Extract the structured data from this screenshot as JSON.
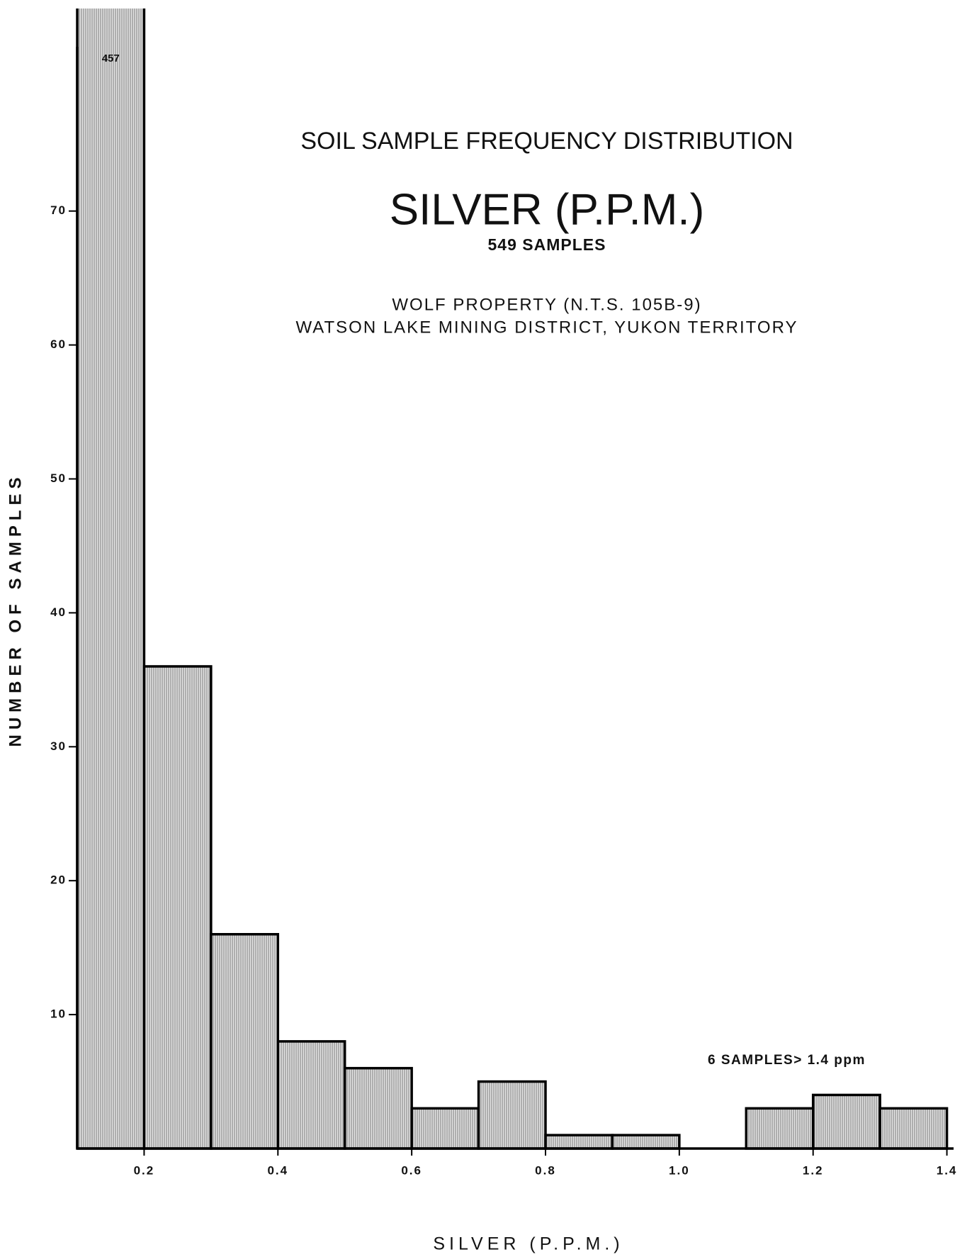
{
  "chart_data": {
    "type": "histogram",
    "title": "SOIL SAMPLE FREQUENCY DISTRIBUTION",
    "subtitle": "SILVER (P.P.M.)",
    "sample_count": "549 SAMPLES",
    "location_line1": "WOLF PROPERTY (N.T.S. 105B-9)",
    "location_line2": "WATSON LAKE MINING DISTRICT, YUKON TERRITORY",
    "annotation": "6 SAMPLES> 1.4 ppm",
    "xlabel": "SILVER (P.P.M.)",
    "ylabel": "NUMBER OF SAMPLES",
    "bins": [
      0.1,
      0.2,
      0.3,
      0.4,
      0.5,
      0.6,
      0.7,
      0.8,
      0.9,
      1.0,
      1.1,
      1.2,
      1.3,
      1.4
    ],
    "values": [
      457,
      36,
      16,
      8,
      6,
      3,
      5,
      1,
      1,
      0,
      3,
      4,
      3
    ],
    "value_labels": [
      "457",
      null,
      null,
      null,
      null,
      null,
      null,
      null,
      null,
      null,
      null,
      null,
      null
    ],
    "color": "#b8b8b8",
    "xlim": [
      0.1,
      1.41
    ],
    "ylim": [
      0,
      82
    ],
    "xticks": [
      0.2,
      0.4,
      0.6,
      0.8,
      {
        "value": 1,
        "label": "1.0"
      },
      1.2,
      1.4
    ],
    "yticks": [
      10,
      20,
      30,
      40,
      50,
      60,
      70
    ]
  }
}
